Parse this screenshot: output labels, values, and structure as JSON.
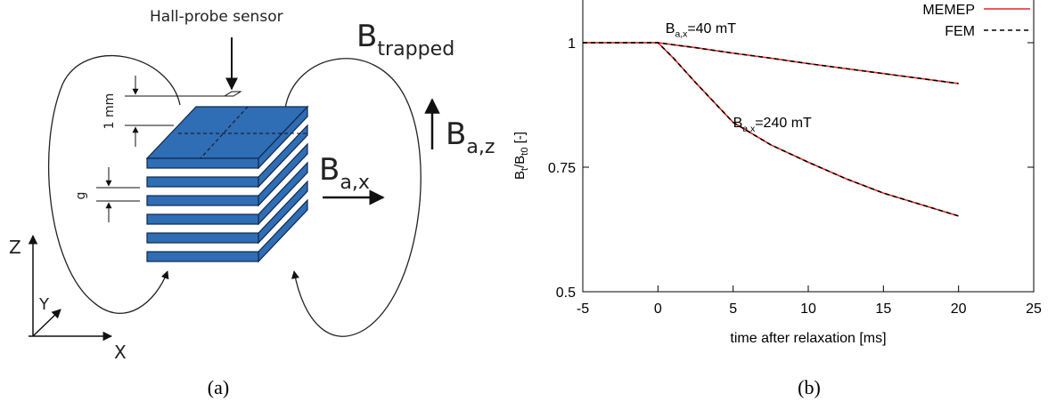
{
  "diagram": {
    "sensor_label": "Hall-probe sensor",
    "b_trapped": {
      "base": "B",
      "sub": "trapped"
    },
    "b_az": {
      "base": "B",
      "sub": "a,z"
    },
    "b_ax": {
      "base": "B",
      "sub": "a,x"
    },
    "thickness": "1 mm",
    "gap": "g",
    "axis_z": "Z",
    "axis_y": "Y",
    "axis_x": "X"
  },
  "captions": [
    "(a)",
    "(b)"
  ],
  "chart_data": {
    "type": "line",
    "x_label": "time after relaxation [ms]",
    "y_label": [
      {
        "text": "B",
        "sub": false
      },
      {
        "text": "t",
        "sub": true
      },
      {
        "text": "/B",
        "sub": false
      },
      {
        "text": "t0",
        "sub": true
      },
      {
        "text": " [-]",
        "sub": false
      }
    ],
    "annotations": [
      {
        "base": "B",
        "sub": "a,x",
        "rest": "=40 mT",
        "x": 0.5,
        "y": 1.02
      },
      {
        "base": "B",
        "sub": "a,x",
        "rest": "=240 mT",
        "x": 5,
        "y": 0.83
      }
    ],
    "x": [
      -5,
      0,
      1,
      2.5,
      5,
      7.5,
      10,
      12.5,
      15,
      17.5,
      20
    ],
    "series": [
      {
        "name": "MEMEP",
        "color": "#e8221e",
        "dashed": false,
        "curves": [
          [
            1,
            1,
            0.996,
            0.99,
            0.979,
            0.969,
            0.958,
            0.948,
            0.938,
            0.928,
            0.918
          ],
          [
            1,
            1,
            0.97,
            0.92,
            0.84,
            0.795,
            0.76,
            0.727,
            0.698,
            0.675,
            0.652
          ]
        ]
      },
      {
        "name": "FEM",
        "color": "#000000",
        "dashed": true,
        "curves": [
          [
            1,
            1,
            0.996,
            0.99,
            0.979,
            0.969,
            0.958,
            0.948,
            0.938,
            0.928,
            0.918
          ],
          [
            1,
            1,
            0.97,
            0.92,
            0.84,
            0.795,
            0.76,
            0.727,
            0.698,
            0.675,
            0.652
          ]
        ]
      }
    ],
    "xlim": [
      -5,
      25
    ],
    "ylim": [
      0.5,
      1.1
    ],
    "xticks": [
      -5,
      0,
      5,
      10,
      15,
      20,
      25
    ],
    "yticks": [
      0.5,
      0.75,
      1
    ]
  }
}
